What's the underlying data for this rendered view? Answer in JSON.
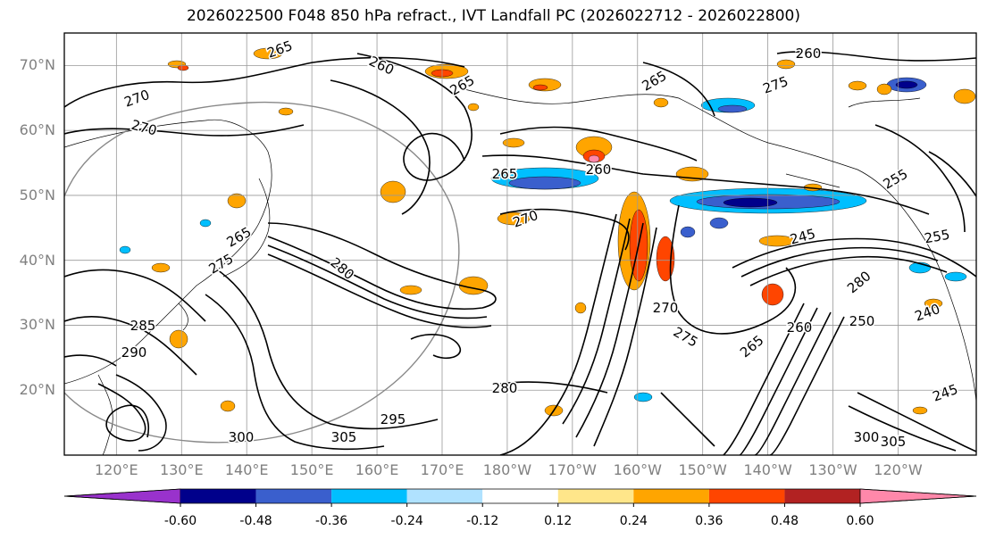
{
  "title": "2026022500 F048 850 hPa refract., IVT Landfall PC (2026022712 - 2026022800)",
  "chart_data": {
    "type": "filled contour map",
    "title": "2026022500 F048 850 hPa refract., IVT Landfall PC (2026022712 - 2026022800)",
    "lat_labels": [
      "70°N",
      "60°N",
      "50°N",
      "40°N",
      "30°N",
      "20°N"
    ],
    "lat_values": [
      70,
      60,
      50,
      40,
      30,
      20
    ],
    "lon_labels": [
      "120°E",
      "130°E",
      "140°E",
      "150°E",
      "160°E",
      "170°E",
      "180°W",
      "170°W",
      "160°W",
      "150°W",
      "140°W",
      "130°W",
      "120°W"
    ],
    "lon_values": [
      120,
      130,
      140,
      150,
      160,
      170,
      180,
      190,
      200,
      210,
      220,
      230,
      240
    ],
    "lat_range": [
      10,
      75
    ],
    "lon_range": [
      112,
      252
    ],
    "contour_labels": [
      "265",
      "270",
      "260",
      "265",
      "270",
      "275",
      "265",
      "260",
      "265",
      "270",
      "255",
      "260",
      "265",
      "275",
      "280",
      "285",
      "290",
      "295",
      "300",
      "305",
      "280",
      "270",
      "275",
      "265",
      "245",
      "255",
      "260",
      "280",
      "250",
      "240",
      "245",
      "300",
      "305"
    ],
    "colorbar": {
      "ticks": [
        "-0.60",
        "-0.48",
        "-0.36",
        "-0.24",
        "-0.12",
        "0.12",
        "0.24",
        "0.36",
        "0.48",
        "0.60"
      ],
      "bounds": [
        -0.6,
        -0.48,
        -0.36,
        -0.24,
        -0.12,
        0.12,
        0.24,
        0.36,
        0.48,
        0.6
      ],
      "colors": [
        "#9932cc",
        "#00008b",
        "#3a5fcd",
        "#00bfff",
        "#b0e2ff",
        "#ffffff",
        "#ffe68a",
        "#ffa500",
        "#ff4500",
        "#b22222",
        "#ff88aa",
        "#ff88aa"
      ]
    }
  },
  "colors": {
    "dark_blue": "#00008b",
    "royal_blue": "#3a5fcd",
    "sky_blue": "#00bfff",
    "light_blue": "#b0e2ff",
    "yellow": "#ffe68a",
    "orange": "#ffa500",
    "red_orange": "#ff4500",
    "dark_red": "#b22222",
    "pink": "#ff88aa",
    "purple": "#9932cc"
  }
}
